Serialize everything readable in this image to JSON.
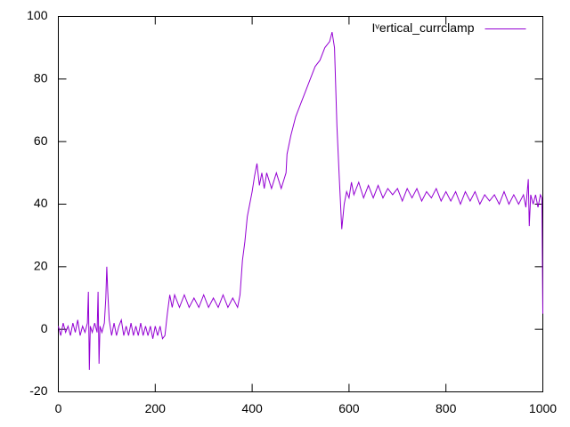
{
  "chart_data": {
    "type": "line",
    "x": [
      0,
      5,
      10,
      15,
      20,
      25,
      30,
      35,
      40,
      45,
      50,
      55,
      60,
      62,
      64,
      66,
      70,
      75,
      80,
      82,
      84,
      86,
      90,
      95,
      98,
      100,
      102,
      105,
      110,
      115,
      120,
      125,
      130,
      135,
      140,
      145,
      150,
      155,
      160,
      165,
      170,
      175,
      180,
      185,
      190,
      195,
      200,
      205,
      210,
      215,
      220,
      225,
      230,
      235,
      240,
      250,
      260,
      270,
      280,
      290,
      300,
      310,
      320,
      330,
      340,
      350,
      360,
      370,
      375,
      380,
      385,
      390,
      395,
      400,
      405,
      410,
      415,
      420,
      425,
      430,
      440,
      450,
      460,
      470,
      472,
      480,
      490,
      500,
      510,
      520,
      530,
      540,
      550,
      560,
      565,
      570,
      575,
      580,
      585,
      590,
      595,
      600,
      605,
      610,
      620,
      630,
      640,
      650,
      660,
      670,
      680,
      690,
      700,
      710,
      720,
      730,
      740,
      750,
      760,
      770,
      780,
      790,
      800,
      810,
      820,
      830,
      840,
      850,
      860,
      870,
      880,
      890,
      900,
      910,
      920,
      930,
      940,
      950,
      960,
      965,
      970,
      972,
      975,
      980,
      985,
      990,
      995,
      998,
      1000
    ],
    "series": [
      {
        "name": "Iᵛertical_currclamp",
        "color": "#9400d3",
        "values": [
          1,
          -2,
          2,
          -1,
          1,
          -2,
          2,
          -1,
          3,
          -2,
          1,
          -1,
          2,
          12,
          -13,
          1,
          -1,
          2,
          -1,
          12,
          -11,
          1,
          -1,
          2,
          10,
          20,
          12,
          3,
          -2,
          2,
          -2,
          1,
          3,
          -2,
          1,
          -2,
          2,
          -2,
          1,
          -2,
          2,
          -2,
          1,
          -2,
          1,
          -3,
          1,
          -2,
          1,
          -3,
          -2,
          5,
          11,
          7,
          11,
          7,
          11,
          7,
          10,
          7,
          11,
          7,
          10,
          7,
          11,
          7,
          10,
          7,
          11,
          22,
          28,
          36,
          40,
          44,
          49,
          53,
          46,
          50,
          45,
          50,
          45,
          50,
          45,
          50,
          56,
          62,
          68,
          72,
          76,
          80,
          84,
          86,
          90,
          92,
          95,
          90,
          65,
          48,
          32,
          40,
          44,
          42,
          47,
          43,
          47,
          42,
          46,
          42,
          46,
          42,
          45,
          43,
          45,
          41,
          45,
          42,
          45,
          41,
          44,
          42,
          45,
          41,
          44,
          41,
          44,
          40,
          44,
          41,
          44,
          40,
          43,
          41,
          43,
          40,
          44,
          40,
          43,
          40,
          43,
          39,
          48,
          33,
          43,
          40,
          43,
          39,
          43,
          42,
          5
        ]
      }
    ],
    "xlim": [
      0,
      1000
    ],
    "ylim": [
      -20,
      100
    ],
    "xticks": [
      0,
      200,
      400,
      600,
      800,
      1000
    ],
    "yticks": [
      -20,
      0,
      20,
      40,
      60,
      80,
      100
    ],
    "legend": "top-right"
  }
}
